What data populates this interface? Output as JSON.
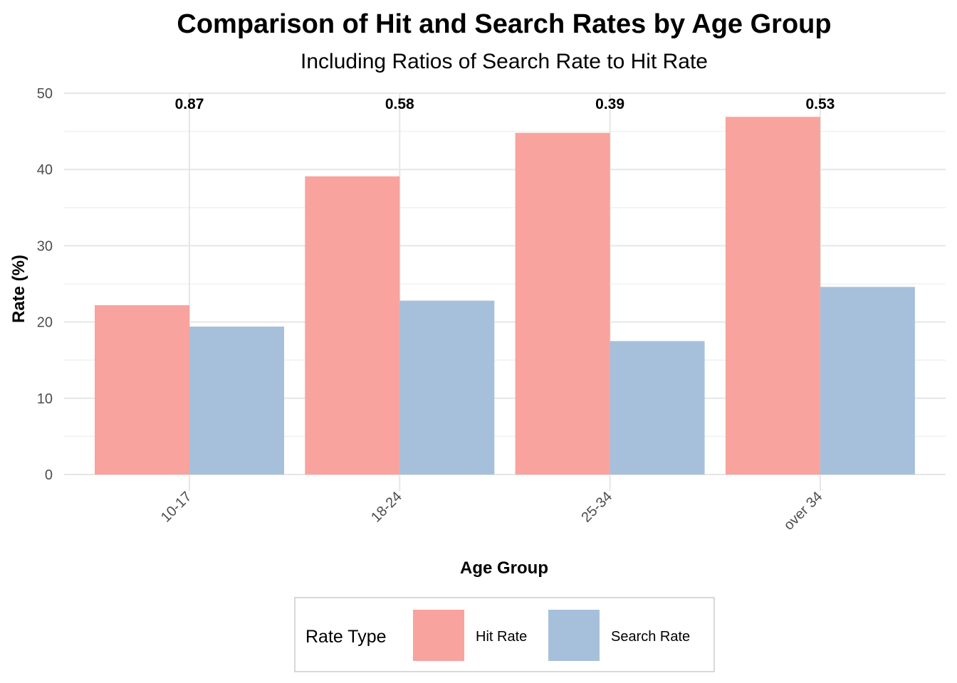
{
  "chart_data": {
    "type": "bar",
    "title": "Comparison of Hit and Search Rates by Age Group",
    "subtitle": "Including Ratios of Search Rate to Hit Rate",
    "xlabel": "Age Group",
    "ylabel": "Rate (%)",
    "ylim": [
      0,
      50
    ],
    "yticks": [
      "0",
      "10",
      "20",
      "30",
      "40",
      "50"
    ],
    "categories": [
      "10-17",
      "18-24",
      "25-34",
      "over 34"
    ],
    "series": [
      {
        "name": "Hit Rate",
        "color": "#F8A39D",
        "values": [
          22.2,
          39.1,
          44.8,
          46.9
        ]
      },
      {
        "name": "Search Rate",
        "color": "#A6C0DB",
        "values": [
          19.4,
          22.8,
          17.5,
          24.6
        ]
      }
    ],
    "ratio_labels": [
      "0.87",
      "0.58",
      "0.39",
      "0.53"
    ],
    "legend": {
      "title": "Rate Type",
      "position": "bottom"
    },
    "grid": true
  }
}
